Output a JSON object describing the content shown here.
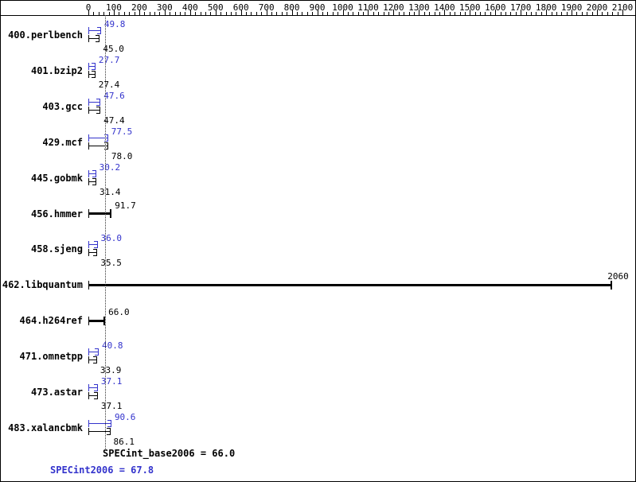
{
  "chart_data": {
    "type": "bar",
    "orientation": "horizontal",
    "axis": {
      "min": 0,
      "max": 2100,
      "major_tick": 100,
      "minor_tick": 20,
      "position": "top",
      "tick_labels": [
        "0",
        "100",
        "200",
        "300",
        "400",
        "500",
        "600",
        "700",
        "800",
        "900",
        "1000",
        "1100",
        "1200",
        "1300",
        "1400",
        "1500",
        "1600",
        "1700",
        "1800",
        "1900",
        "2000",
        "2100"
      ]
    },
    "colors": {
      "peak": "#3333cc",
      "base": "#000000"
    },
    "benchmarks": [
      {
        "name": "400.perlbench",
        "type": "pair",
        "peak": 49.8,
        "peak_label": "49.8",
        "base": 45.0,
        "base_label": "45.0"
      },
      {
        "name": "401.bzip2",
        "type": "pair",
        "peak": 27.7,
        "peak_label": "27.7",
        "base": 27.4,
        "base_label": "27.4"
      },
      {
        "name": "403.gcc",
        "type": "pair",
        "peak": 47.6,
        "peak_label": "47.6",
        "base": 47.4,
        "base_label": "47.4"
      },
      {
        "name": "429.mcf",
        "type": "pair",
        "peak": 77.5,
        "peak_label": "77.5",
        "base": 78.0,
        "base_label": "78.0"
      },
      {
        "name": "445.gobmk",
        "type": "pair",
        "peak": 30.2,
        "peak_label": "30.2",
        "base": 31.4,
        "base_label": "31.4"
      },
      {
        "name": "456.hmmer",
        "type": "single",
        "value": 91.7,
        "label": "91.7"
      },
      {
        "name": "458.sjeng",
        "type": "pair",
        "peak": 36.0,
        "peak_label": "36.0",
        "base": 35.5,
        "base_label": "35.5"
      },
      {
        "name": "462.libquantum",
        "type": "single",
        "value": 2060,
        "label": "2060"
      },
      {
        "name": "464.h264ref",
        "type": "single",
        "value": 66.0,
        "label": "66.0"
      },
      {
        "name": "471.omnetpp",
        "type": "pair",
        "peak": 40.8,
        "peak_label": "40.8",
        "base": 33.9,
        "base_label": "33.9"
      },
      {
        "name": "473.astar",
        "type": "pair",
        "peak": 37.1,
        "peak_label": "37.1",
        "base": 37.1,
        "base_label": "37.1"
      },
      {
        "name": "483.xalancbmk",
        "type": "pair",
        "peak": 90.6,
        "peak_label": "90.6",
        "base": 86.1,
        "base_label": "86.1"
      }
    ],
    "summary": {
      "base_value": 66.0,
      "base_text": "SPECint_base2006 = 66.0",
      "peak_value": 67.8,
      "peak_text": "SPECint2006 = 67.8"
    }
  }
}
